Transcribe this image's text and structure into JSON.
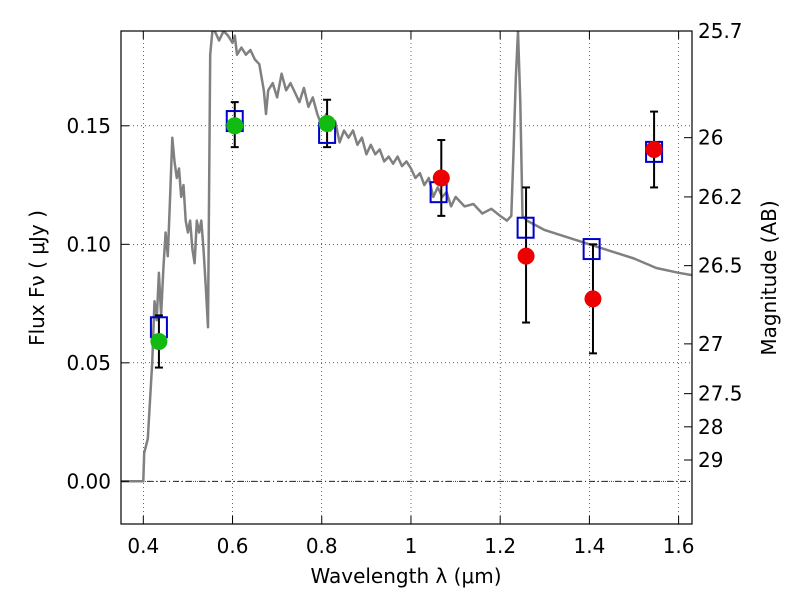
{
  "chart_data": {
    "type": "scatter",
    "xlabel": "Wavelength  λ (μm)",
    "ylabel": "Flux  Fν  ( μJy )",
    "y2label": "Magnitude (AB)",
    "xlim": [
      0.35,
      1.63
    ],
    "ylim": [
      -0.018,
      0.19
    ],
    "x_ticks": [
      0.4,
      0.6,
      0.8,
      1.0,
      1.2,
      1.4,
      1.6
    ],
    "x_tick_labels": [
      "0.4",
      "0.6",
      "0.8",
      "1",
      "1.2",
      "1.4",
      "1.6"
    ],
    "y_ticks": [
      0.0,
      0.05,
      0.1,
      0.15
    ],
    "y_tick_labels": [
      "0.00",
      "0.05",
      "0.10",
      "0.15"
    ],
    "mag_ticks": [
      {
        "label": "25.7",
        "flux": 0.19
      },
      {
        "label": "26",
        "flux": 0.145
      },
      {
        "label": "26.2",
        "flux": 0.12
      },
      {
        "label": "26.5",
        "flux": 0.091
      },
      {
        "label": "27",
        "flux": 0.058
      },
      {
        "label": "27.5",
        "flux": 0.037
      },
      {
        "label": "28",
        "flux": 0.023
      },
      {
        "label": "29",
        "flux": 0.009
      }
    ],
    "grid": true,
    "colors": {
      "spectrum": "#808080",
      "model_box": "#0000cc",
      "detection": "#11bb11",
      "nondetection": "#ee0000",
      "errorbar": "#000000"
    },
    "spectrum": {
      "x": [
        0.35,
        0.4,
        0.402,
        0.41,
        0.42,
        0.425,
        0.43,
        0.435,
        0.44,
        0.445,
        0.45,
        0.455,
        0.46,
        0.465,
        0.47,
        0.475,
        0.48,
        0.485,
        0.49,
        0.495,
        0.5,
        0.505,
        0.51,
        0.515,
        0.52,
        0.525,
        0.53,
        0.535,
        0.54,
        0.545,
        0.55,
        0.555,
        0.56,
        0.57,
        0.58,
        0.59,
        0.6,
        0.605,
        0.61,
        0.62,
        0.63,
        0.64,
        0.65,
        0.66,
        0.67,
        0.675,
        0.68,
        0.69,
        0.7,
        0.71,
        0.72,
        0.73,
        0.74,
        0.75,
        0.76,
        0.77,
        0.78,
        0.79,
        0.8,
        0.81,
        0.82,
        0.83,
        0.84,
        0.85,
        0.86,
        0.87,
        0.88,
        0.89,
        0.9,
        0.91,
        0.92,
        0.93,
        0.94,
        0.95,
        0.96,
        0.97,
        0.98,
        0.99,
        1.0,
        1.01,
        1.02,
        1.03,
        1.04,
        1.05,
        1.06,
        1.07,
        1.08,
        1.09,
        1.1,
        1.12,
        1.14,
        1.16,
        1.18,
        1.2,
        1.215,
        1.225,
        1.23,
        1.235,
        1.24,
        1.245,
        1.25,
        1.26,
        1.28,
        1.3,
        1.35,
        1.4,
        1.45,
        1.5,
        1.55,
        1.6,
        1.63
      ],
      "y": [
        0.0,
        0.0,
        0.012,
        0.018,
        0.05,
        0.076,
        0.068,
        0.088,
        0.07,
        0.09,
        0.105,
        0.095,
        0.12,
        0.145,
        0.135,
        0.128,
        0.132,
        0.12,
        0.125,
        0.11,
        0.105,
        0.11,
        0.098,
        0.092,
        0.11,
        0.105,
        0.11,
        0.098,
        0.082,
        0.065,
        0.18,
        0.19,
        0.19,
        0.186,
        0.19,
        0.188,
        0.185,
        0.188,
        0.18,
        0.183,
        0.18,
        0.182,
        0.178,
        0.176,
        0.165,
        0.155,
        0.165,
        0.168,
        0.162,
        0.172,
        0.165,
        0.168,
        0.164,
        0.16,
        0.166,
        0.158,
        0.162,
        0.155,
        0.15,
        0.155,
        0.148,
        0.152,
        0.143,
        0.148,
        0.145,
        0.148,
        0.142,
        0.145,
        0.138,
        0.142,
        0.138,
        0.14,
        0.135,
        0.137,
        0.134,
        0.137,
        0.133,
        0.135,
        0.132,
        0.128,
        0.13,
        0.125,
        0.128,
        0.12,
        0.124,
        0.12,
        0.122,
        0.116,
        0.12,
        0.116,
        0.117,
        0.113,
        0.115,
        0.112,
        0.11,
        0.112,
        0.14,
        0.17,
        0.19,
        0.16,
        0.112,
        0.11,
        0.108,
        0.106,
        0.103,
        0.1,
        0.097,
        0.094,
        0.09,
        0.088,
        0.087
      ]
    },
    "model_boxes": [
      {
        "x": 0.435,
        "y": 0.065
      },
      {
        "x": 0.605,
        "y": 0.152
      },
      {
        "x": 0.812,
        "y": 0.147
      },
      {
        "x": 1.062,
        "y": 0.122
      },
      {
        "x": 1.257,
        "y": 0.107
      },
      {
        "x": 1.405,
        "y": 0.098
      },
      {
        "x": 1.545,
        "y": 0.139
      }
    ],
    "detections": [
      {
        "x": 0.435,
        "y": 0.059,
        "yerr_low": 0.011,
        "yerr_high": 0.011
      },
      {
        "x": 0.605,
        "y": 0.15,
        "yerr_low": 0.009,
        "yerr_high": 0.01
      },
      {
        "x": 0.812,
        "y": 0.151,
        "yerr_low": 0.01,
        "yerr_high": 0.01
      }
    ],
    "nondetections": [
      {
        "x": 1.068,
        "y": 0.128,
        "yerr_low": 0.016,
        "yerr_high": 0.016
      },
      {
        "x": 1.258,
        "y": 0.095,
        "yerr_low": 0.028,
        "yerr_high": 0.029
      },
      {
        "x": 1.408,
        "y": 0.077,
        "yerr_low": 0.023,
        "yerr_high": 0.023
      },
      {
        "x": 1.545,
        "y": 0.14,
        "yerr_low": 0.016,
        "yerr_high": 0.016
      }
    ]
  }
}
